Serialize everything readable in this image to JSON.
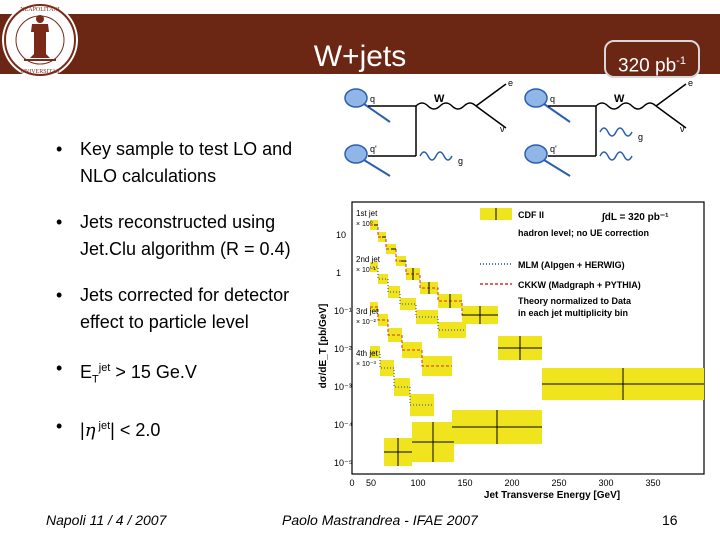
{
  "header": {
    "title": "W+jets",
    "luminosity": {
      "base": "320 pb",
      "exp": "-1"
    },
    "colors": {
      "band": "#6b2714",
      "text": "#ffffff"
    }
  },
  "logo": {
    "text": "STATIS NEAPOLITANI UNIVERSITAS"
  },
  "bullets": [
    {
      "text": "Key sample to test LO and NLO calculations"
    },
    {
      "text": "Jets reconstructed using Jet.Clu algorithm (R = 0.4)"
    },
    {
      "text": "Jets corrected for detector effect to particle level"
    },
    {
      "pre": "E",
      "sub": "T",
      "sup": "jet",
      "post": " > 15 Ge.V"
    },
    {
      "pre": "|",
      "sym": "η",
      "sup": " jet",
      "post": "| < 2.0"
    }
  ],
  "diagrams": [
    {
      "in_top": "q",
      "in_bottom": "q'",
      "boson": "W",
      "lepton": "e",
      "neutrino": "ν",
      "gluon": "g"
    },
    {
      "in_top": "q",
      "in_bottom": "q'",
      "boson": "W",
      "lepton": "e",
      "neutrino": "ν",
      "gluon": "g"
    }
  ],
  "plot": {
    "ylabel": "dσ/dE_T [pb/GeV]",
    "xlabel": "Jet Transverse Energy [GeV]",
    "x_ticks": [
      "0",
      "50",
      "100",
      "150",
      "200",
      "250",
      "300",
      "350"
    ],
    "y_ticks": [
      "10",
      "1",
      "10⁻¹",
      "10⁻²",
      "10⁻³",
      "10⁻⁴",
      "10⁻⁵"
    ],
    "legend": [
      {
        "label": "CDF II",
        "style": "data"
      },
      {
        "label": "hadron level; no UE correction",
        "style": "text"
      },
      {
        "label": "MLM (Alpgen + HERWIG)",
        "style": "dotted",
        "color": "#2a3ea8"
      },
      {
        "label": "CKKW (Madgraph + PYTHIA)",
        "style": "dashed",
        "color": "#d03030"
      },
      {
        "label": "Theory normalized to Data",
        "style": "text"
      },
      {
        "label": "in each jet multiplicity bin",
        "style": "text"
      }
    ],
    "lumi_label": "∫dL = 320 pb⁻¹",
    "series_labels": [
      {
        "main": "1st jet",
        "scale": "× 10⁰"
      },
      {
        "main": "2nd jet",
        "scale": "× 10⁻¹"
      },
      {
        "main": "3rd jet",
        "scale": "× 10⁻²"
      },
      {
        "main": "4th jet",
        "scale": "× 10⁻³"
      }
    ],
    "colors": {
      "band": "#f0e41e",
      "data": "#000000"
    }
  },
  "footer": {
    "left": "Napoli 11 / 4 / 2007",
    "center": "Paolo Mastrandrea - IFAE 2007",
    "page": "16"
  }
}
